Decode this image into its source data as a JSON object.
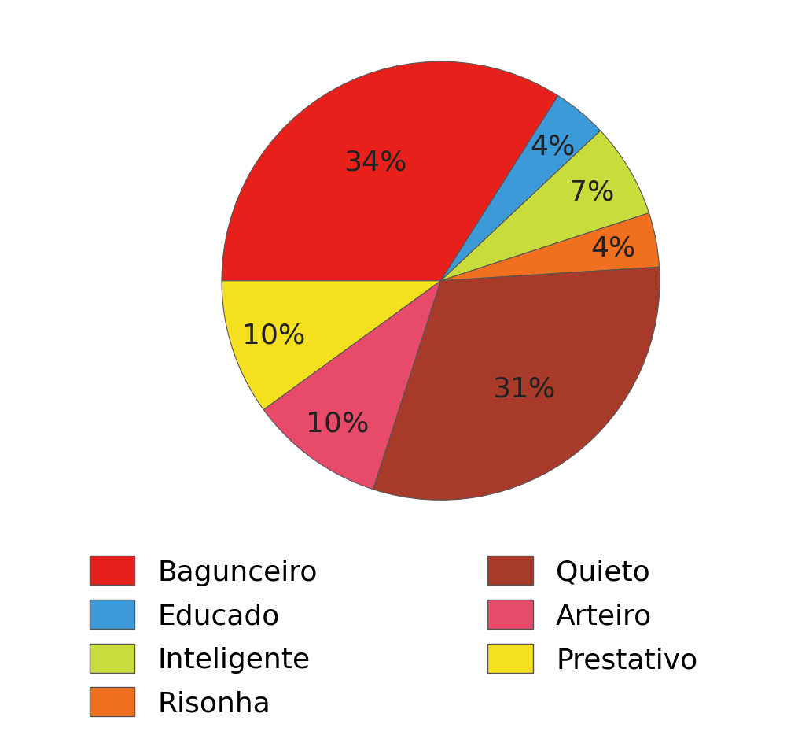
{
  "chart_data": {
    "type": "pie",
    "categories": [
      "Bagunceiro",
      "Educado",
      "Inteligente",
      "Risonha",
      "Quieto",
      "Arteiro",
      "Prestativo"
    ],
    "values": [
      34,
      4,
      7,
      4,
      31,
      10,
      10
    ],
    "value_labels": [
      "34%",
      "4%",
      "7%",
      "4%",
      "31%",
      "10%",
      "10%"
    ],
    "colors": [
      "#e8201c",
      "#3d9ad8",
      "#c8dc3c",
      "#f07020",
      "#a83a2a",
      "#e84a6a",
      "#f5e020"
    ],
    "data_labels": true,
    "legend": "lower center"
  }
}
